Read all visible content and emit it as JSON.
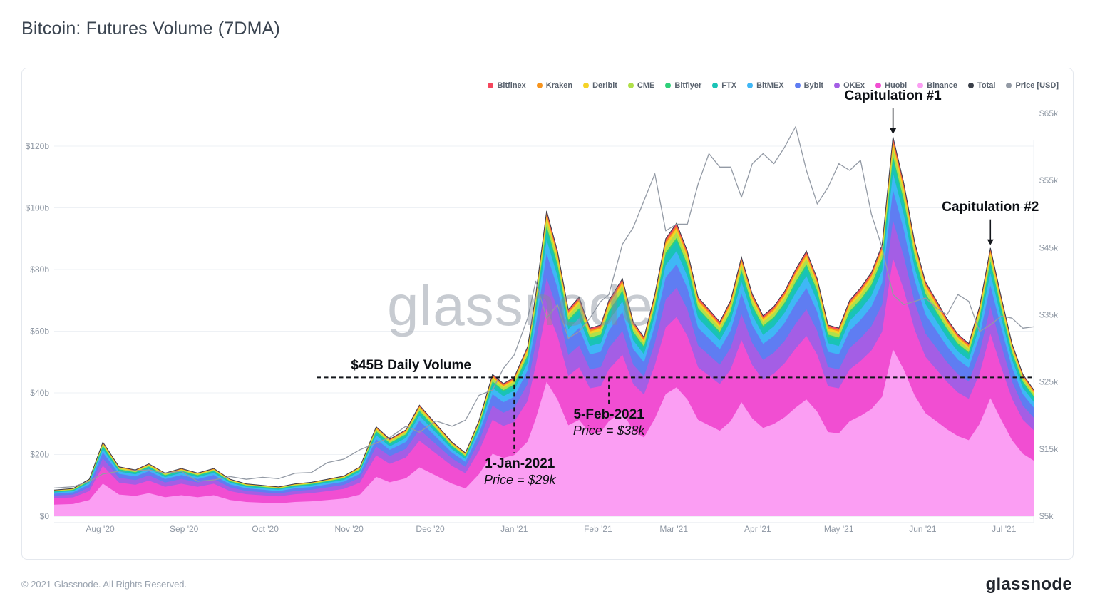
{
  "page": {
    "title": "Bitcoin: Futures Volume (7DMA)",
    "footer_copyright": "© 2021 Glassnode. All Rights Reserved.",
    "brand_logo_text": "glassnode",
    "watermark_text": "glassnode"
  },
  "chart_data": {
    "type": "area",
    "stacked": true,
    "title": "Bitcoin: Futures Volume (7DMA)",
    "volume_unit": "USD billions (left axis)",
    "price_unit": "USD thousands (right axis)",
    "x_dates": [
      "2020-07-15",
      "2020-07-22",
      "2020-07-28",
      "2020-08-02",
      "2020-08-08",
      "2020-08-14",
      "2020-08-19",
      "2020-08-25",
      "2020-08-31",
      "2020-09-06",
      "2020-09-12",
      "2020-09-18",
      "2020-09-24",
      "2020-09-30",
      "2020-10-06",
      "2020-10-12",
      "2020-10-18",
      "2020-10-24",
      "2020-10-30",
      "2020-11-05",
      "2020-11-11",
      "2020-11-16",
      "2020-11-22",
      "2020-11-27",
      "2020-12-03",
      "2020-12-09",
      "2020-12-14",
      "2020-12-19",
      "2020-12-24",
      "2020-12-28",
      "2021-01-01",
      "2021-01-06",
      "2021-01-09",
      "2021-01-13",
      "2021-01-17",
      "2021-01-21",
      "2021-01-25",
      "2021-01-29",
      "2021-02-02",
      "2021-02-05",
      "2021-02-10",
      "2021-02-14",
      "2021-02-18",
      "2021-02-22",
      "2021-02-26",
      "2021-03-02",
      "2021-03-06",
      "2021-03-10",
      "2021-03-14",
      "2021-03-18",
      "2021-03-22",
      "2021-03-26",
      "2021-03-30",
      "2021-04-03",
      "2021-04-07",
      "2021-04-11",
      "2021-04-15",
      "2021-04-19",
      "2021-04-23",
      "2021-04-27",
      "2021-05-01",
      "2021-05-05",
      "2021-05-09",
      "2021-05-13",
      "2021-05-17",
      "2021-05-21",
      "2021-05-25",
      "2021-05-29",
      "2021-06-02",
      "2021-06-06",
      "2021-06-10",
      "2021-06-14",
      "2021-06-18",
      "2021-06-22",
      "2021-06-26",
      "2021-06-30",
      "2021-07-04",
      "2021-07-08",
      "2021-07-12"
    ],
    "total_futures_volume_busd": [
      8.5,
      9,
      12,
      24,
      16,
      15,
      17,
      14,
      15.5,
      14,
      15.5,
      12,
      10.5,
      10,
      9.5,
      10.5,
      11,
      12,
      13,
      16,
      29,
      25,
      28,
      36,
      30,
      24,
      20.5,
      31,
      46,
      43,
      45,
      55,
      72,
      99,
      86,
      67,
      71,
      61,
      62,
      70,
      77,
      63,
      58,
      72,
      90,
      95,
      86,
      71,
      67,
      63,
      70,
      84,
      72,
      65,
      68,
      73,
      80,
      86,
      77,
      62,
      61,
      70,
      74,
      79,
      88,
      123,
      108,
      89,
      76,
      70,
      64,
      59,
      56,
      68,
      87,
      71,
      56,
      46,
      41
    ],
    "price_usd_k": [
      9.2,
      9.4,
      10.2,
      11.3,
      11.7,
      11.8,
      11.9,
      11.4,
      11.7,
      10.2,
      10.4,
      10.9,
      10.5,
      10.8,
      10.6,
      11.4,
      11.5,
      13.0,
      13.5,
      14.9,
      15.9,
      16.7,
      18.4,
      17.5,
      19.2,
      18.4,
      19.3,
      23.0,
      23.8,
      27.0,
      29.0,
      34.5,
      40.0,
      34.5,
      36.5,
      31.5,
      32.5,
      34.5,
      37.0,
      38.0,
      45.5,
      48.0,
      52.0,
      56.0,
      47.5,
      48.5,
      48.5,
      54.5,
      59.0,
      57.0,
      57.0,
      52.5,
      57.5,
      59.0,
      57.5,
      60.0,
      63.0,
      56.5,
      51.5,
      54.0,
      57.5,
      56.5,
      58.0,
      50.0,
      45.0,
      38.0,
      36.5,
      37.0,
      37.5,
      36.0,
      35.0,
      38.0,
      37.0,
      32.5,
      33.5,
      34.8,
      34.5,
      33.0,
      33.2
    ],
    "stack_composition_bottom_to_top": [
      {
        "name": "Binance",
        "color": "#fb9ef3",
        "share_of_total": 0.44
      },
      {
        "name": "Huobi",
        "color": "#f14ed2",
        "share_of_total": 0.24
      },
      {
        "name": "OKEx",
        "color": "#a45ee5",
        "share_of_total": 0.1
      },
      {
        "name": "Bybit",
        "color": "#5f7df2",
        "share_of_total": 0.08
      },
      {
        "name": "BitMEX",
        "color": "#3fb7f6",
        "share_of_total": 0.045
      },
      {
        "name": "FTX",
        "color": "#19c3b6",
        "share_of_total": 0.035
      },
      {
        "name": "Bitflyer",
        "color": "#2fd079",
        "share_of_total": 0.01
      },
      {
        "name": "CME",
        "color": "#b0e04a",
        "share_of_total": 0.02
      },
      {
        "name": "Deribit",
        "color": "#f5d327",
        "share_of_total": 0.012
      },
      {
        "name": "Kraken",
        "color": "#f7941d",
        "share_of_total": 0.008
      },
      {
        "name": "Bitfinex",
        "color": "#f5465d",
        "share_of_total": 0.01
      }
    ],
    "total_line_color": "#3a3f49",
    "price_line_color": "#939aa5",
    "legend": [
      {
        "label": "Bitfinex",
        "color": "#f5465d"
      },
      {
        "label": "Kraken",
        "color": "#f7941d"
      },
      {
        "label": "Deribit",
        "color": "#f5d327"
      },
      {
        "label": "CME",
        "color": "#b0e04a"
      },
      {
        "label": "Bitflyer",
        "color": "#2fd079"
      },
      {
        "label": "FTX",
        "color": "#19c3b6"
      },
      {
        "label": "BitMEX",
        "color": "#3fb7f6"
      },
      {
        "label": "Bybit",
        "color": "#5f7df2"
      },
      {
        "label": "OKEx",
        "color": "#a45ee5"
      },
      {
        "label": "Huobi",
        "color": "#f14ed2"
      },
      {
        "label": "Binance",
        "color": "#fb9ef3"
      },
      {
        "label": "Total",
        "color": "#3a3f49"
      },
      {
        "label": "Price [USD]",
        "color": "#939aa5"
      }
    ],
    "y_axis_left": {
      "ticks": [
        "$0",
        "$20b",
        "$40b",
        "$60b",
        "$80b",
        "$100b",
        "$120b"
      ],
      "min_busd": 0,
      "max_busd": 120,
      "grid": true
    },
    "y_axis_right": {
      "ticks": [
        "$5k",
        "$15k",
        "$25k",
        "$35k",
        "$45k",
        "$55k",
        "$65k"
      ],
      "min_k": 5,
      "max_k": 65
    },
    "x_ticks": [
      {
        "label": "Aug '20",
        "date": "2020-08-01"
      },
      {
        "label": "Sep '20",
        "date": "2020-09-01"
      },
      {
        "label": "Oct '20",
        "date": "2020-10-01"
      },
      {
        "label": "Nov '20",
        "date": "2020-11-01"
      },
      {
        "label": "Dec '20",
        "date": "2020-12-01"
      },
      {
        "label": "Jan '21",
        "date": "2021-01-01"
      },
      {
        "label": "Feb '21",
        "date": "2021-02-01"
      },
      {
        "label": "Mar '21",
        "date": "2021-03-01"
      },
      {
        "label": "Apr '21",
        "date": "2021-04-01"
      },
      {
        "label": "May '21",
        "date": "2021-05-01"
      },
      {
        "label": "Jun '21",
        "date": "2021-06-01"
      },
      {
        "label": "Jul '21",
        "date": "2021-07-01"
      }
    ],
    "annotations": {
      "capitulation_1": {
        "label": "Capitulation #1",
        "date": "2021-05-21",
        "volume_busd": 123
      },
      "capitulation_2": {
        "label": "Capitulation #2",
        "date": "2021-06-26",
        "volume_busd": 87
      },
      "daily_volume_threshold": {
        "label": "$45B Daily Volume",
        "value_busd": 45
      },
      "jan1": {
        "label": "1-Jan-2021",
        "sub": "Price = $29k",
        "date": "2021-01-01"
      },
      "feb5": {
        "label": "5-Feb-2021",
        "sub": "Price = $38k",
        "date": "2021-02-05"
      }
    }
  }
}
